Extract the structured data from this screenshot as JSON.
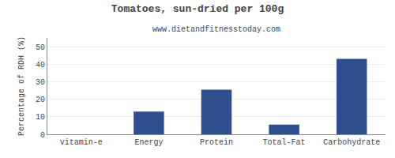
{
  "chart_data": {
    "type": "bar",
    "title": "Tomatoes, sun-dried per 100g",
    "subtitle": "www.dietandfitnesstoday.com",
    "categories": [
      "vitamin-e",
      "Energy",
      "Protein",
      "Total-Fat",
      "Carbohydrate"
    ],
    "values": [
      0,
      13,
      25.5,
      5.5,
      43
    ],
    "color": "#2d4f8e",
    "ylabel": "Percentage of RDH (%)",
    "ylim": [
      0,
      55
    ],
    "yticks": [
      0,
      10,
      20,
      30,
      40,
      50
    ],
    "grid": true
  }
}
